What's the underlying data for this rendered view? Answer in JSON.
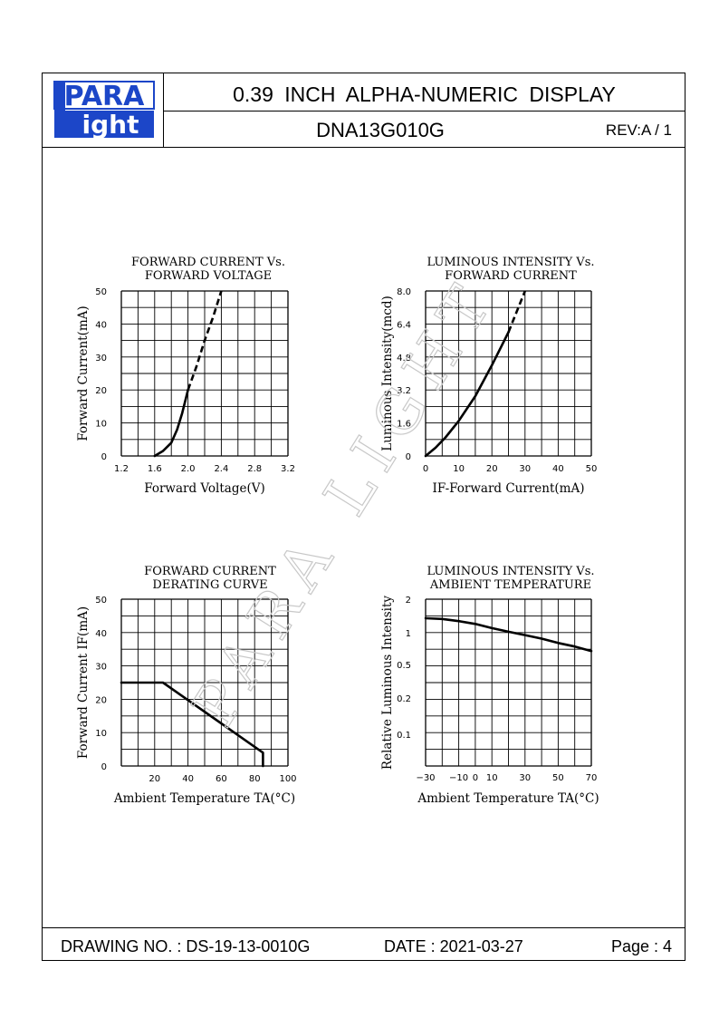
{
  "header": {
    "logo_top": "PARA",
    "logo_bottom": "ight",
    "logo_l": "L",
    "title": "0.39 INCH ALPHA-NUMERIC DISPLAY",
    "model": "DNA13G010G",
    "rev": "REV:A / 1"
  },
  "footer": {
    "drawing_no": "DRAWING NO. : DS-19-13-0010G",
    "date": "DATE : 2021-03-27",
    "page": "Page : 4"
  },
  "watermark": "PARA LIGHT",
  "chart_data": [
    {
      "type": "line",
      "title_lines": [
        "FORWARD  CURRENT  Vs.",
        "FORWARD  VOLTAGE"
      ],
      "xlabel": "Forward  Voltage(V)",
      "ylabel": "Forward  Current(mA)",
      "xlim": [
        1.2,
        3.2
      ],
      "ylim": [
        0,
        50
      ],
      "x_ticks": [
        "1.2",
        "1.6",
        "2.0",
        "2.4",
        "2.8",
        "3.2"
      ],
      "y_ticks": [
        "0",
        "10",
        "20",
        "30",
        "40",
        "50"
      ],
      "x": [
        1.6,
        1.7,
        1.8,
        1.87,
        1.93,
        2.0
      ],
      "y": [
        0,
        1.5,
        4,
        8,
        13,
        20
      ],
      "x_dashed": [
        2.0,
        2.1,
        2.2,
        2.3,
        2.4
      ],
      "y_dashed": [
        20,
        27,
        35,
        42,
        50
      ],
      "grid": true
    },
    {
      "type": "line",
      "title_lines": [
        "LUMINOUS  INTENSITY  Vs.",
        "FORWARD  CURRENT"
      ],
      "xlabel": "IF-Forward  Current(mA)",
      "ylabel": "Luminous  Intensity(mcd)",
      "xlim": [
        0,
        50
      ],
      "ylim": [
        0,
        8.0
      ],
      "x_ticks": [
        "0",
        "10",
        "20",
        "30",
        "40",
        "50"
      ],
      "y_ticks": [
        "0",
        "1.6",
        "3.2",
        "4.8",
        "6.4",
        "8.0"
      ],
      "x": [
        0,
        3,
        6,
        10,
        15,
        20,
        25
      ],
      "y": [
        0,
        0.4,
        0.9,
        1.7,
        2.9,
        4.4,
        6.0
      ],
      "x_dashed": [
        25,
        27.5,
        30
      ],
      "y_dashed": [
        6.0,
        7.0,
        8.0
      ],
      "grid": true
    },
    {
      "type": "line",
      "title_lines": [
        "FORWARD  CURRENT",
        "DERATING  CURVE"
      ],
      "xlabel": "Ambient  Temperature  TA(°C)",
      "ylabel": "Forward  Current  IF(mA)",
      "xlim": [
        0,
        100
      ],
      "ylim": [
        0,
        50
      ],
      "x_ticks": [
        "20",
        "40",
        "60",
        "80",
        "100"
      ],
      "y_ticks": [
        "0",
        "10",
        "20",
        "30",
        "40",
        "50"
      ],
      "x": [
        0,
        25,
        85,
        85
      ],
      "y": [
        25,
        25,
        4,
        0
      ],
      "grid": true
    },
    {
      "type": "line",
      "title_lines": [
        "LUMINOUS  INTENSITY  Vs.",
        "AMBIENT  TEMPERATURE"
      ],
      "xlabel": "Ambient  Temperature  TA(°C)",
      "ylabel": "Relative  Luminous  Intensity",
      "x_ticks": [
        "-30",
        "-10",
        "0",
        "10",
        "30",
        "50",
        "70"
      ],
      "y_ticks": [
        "0.1",
        "0.2",
        "0.5",
        "1",
        "2"
      ],
      "y_scale": "log",
      "x": [
        -30,
        -20,
        -10,
        0,
        10,
        20,
        30,
        40,
        50,
        60,
        70
      ],
      "y": [
        1.35,
        1.33,
        1.27,
        1.2,
        1.1,
        1.02,
        0.95,
        0.88,
        0.8,
        0.74,
        0.67
      ],
      "grid": true
    }
  ]
}
